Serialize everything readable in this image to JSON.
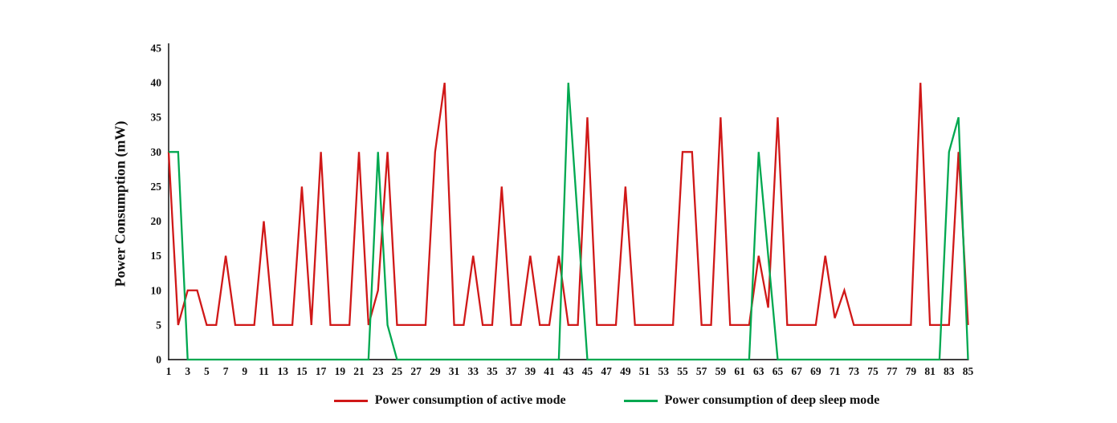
{
  "chart_data": {
    "type": "line",
    "title": "",
    "xlabel": "",
    "ylabel": "Power Consumption (mW)",
    "ylim": [
      0,
      45
    ],
    "grid": false,
    "legend_position": "bottom",
    "x": [
      1,
      2,
      3,
      4,
      5,
      6,
      7,
      8,
      9,
      10,
      11,
      12,
      13,
      14,
      15,
      16,
      17,
      18,
      19,
      20,
      21,
      22,
      23,
      24,
      25,
      26,
      27,
      28,
      29,
      30,
      31,
      32,
      33,
      34,
      35,
      36,
      37,
      38,
      39,
      40,
      41,
      42,
      43,
      44,
      45,
      46,
      47,
      48,
      49,
      50,
      51,
      52,
      53,
      54,
      55,
      56,
      57,
      58,
      59,
      60,
      61,
      62,
      63,
      64,
      65,
      66,
      67,
      68,
      69,
      70,
      71,
      72,
      73,
      74,
      75,
      76,
      77,
      78,
      79,
      80,
      81,
      82,
      83,
      84,
      85
    ],
    "x_tick_labels": [
      "1",
      "3",
      "5",
      "7",
      "9",
      "11",
      "13",
      "15",
      "17",
      "19",
      "21",
      "23",
      "25",
      "27",
      "29",
      "31",
      "33",
      "35",
      "37",
      "39",
      "41",
      "43",
      "45",
      "47",
      "49",
      "51",
      "53",
      "55",
      "57",
      "59",
      "61",
      "63",
      "65",
      "67",
      "69",
      "71",
      "73",
      "75",
      "77",
      "79",
      "81",
      "83",
      "85"
    ],
    "y_ticks": [
      0,
      5,
      10,
      15,
      20,
      25,
      30,
      35,
      40,
      45
    ],
    "series": [
      {
        "name": "Power consumption of active mode",
        "color": "#d01818",
        "values": [
          30,
          5,
          10,
          10,
          5,
          5,
          15,
          5,
          5,
          5,
          20,
          5,
          5,
          5,
          25,
          5,
          30,
          5,
          5,
          5,
          30,
          5,
          10,
          30,
          5,
          5,
          5,
          5,
          30,
          40,
          5,
          5,
          15,
          5,
          5,
          25,
          5,
          5,
          15,
          5,
          5,
          15,
          5,
          5,
          35,
          5,
          5,
          5,
          25,
          5,
          5,
          5,
          5,
          5,
          30,
          30,
          5,
          5,
          35,
          5,
          5,
          5,
          15,
          7.5,
          35,
          5,
          5,
          5,
          5,
          15,
          6,
          10,
          5,
          5,
          5,
          5,
          5,
          5,
          5,
          40,
          5,
          5,
          5,
          30,
          5
        ]
      },
      {
        "name": "Power consumption of deep sleep mode",
        "color": "#00a850",
        "values": [
          30,
          30,
          0,
          0,
          0,
          0,
          0,
          0,
          0,
          0,
          0,
          0,
          0,
          0,
          0,
          0,
          0,
          0,
          0,
          0,
          0,
          0,
          30,
          5,
          0,
          0,
          0,
          0,
          0,
          0,
          0,
          0,
          0,
          0,
          0,
          0,
          0,
          0,
          0,
          0,
          0,
          0,
          40,
          20,
          0,
          0,
          0,
          0,
          0,
          0,
          0,
          0,
          0,
          0,
          0,
          0,
          0,
          0,
          0,
          0,
          0,
          0,
          30,
          15,
          0,
          0,
          0,
          0,
          0,
          0,
          0,
          0,
          0,
          0,
          0,
          0,
          0,
          0,
          0,
          0,
          0,
          0,
          30,
          35,
          0
        ]
      }
    ]
  }
}
